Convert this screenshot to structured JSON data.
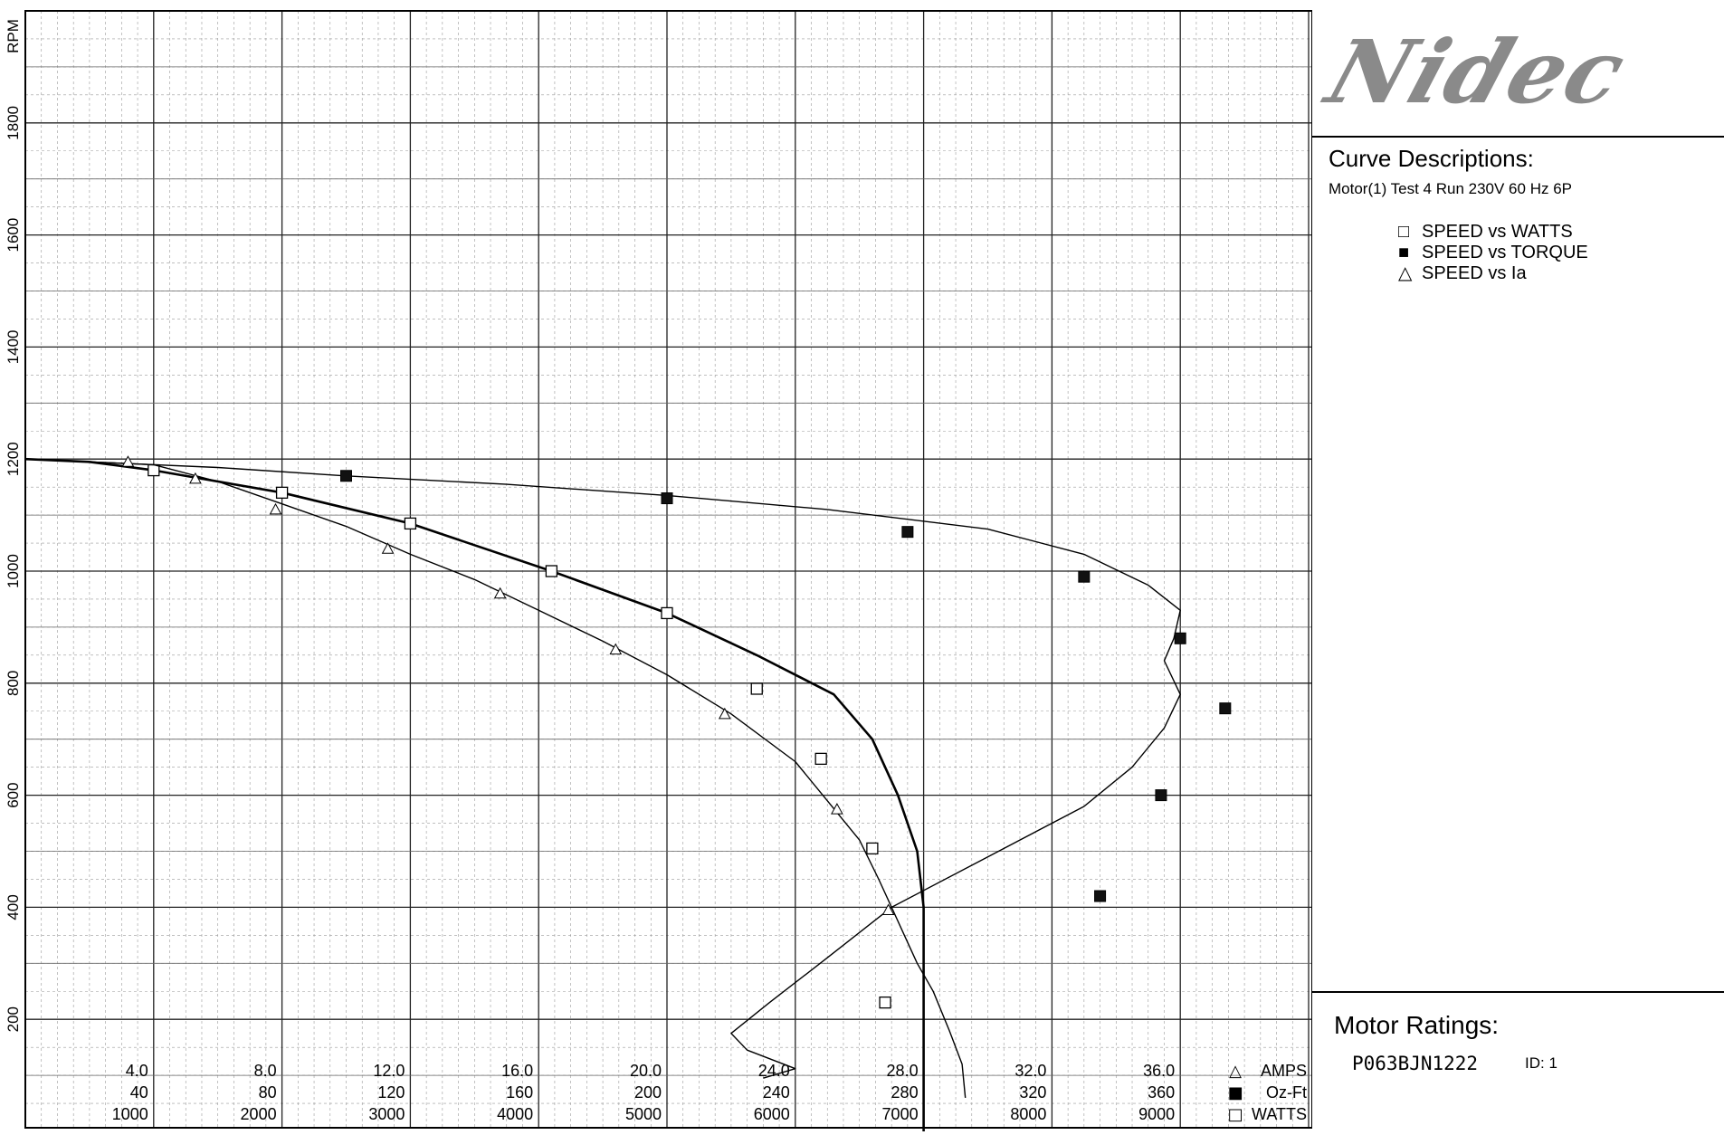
{
  "brand": {
    "logo_text": "Nidec"
  },
  "panel": {
    "curve_title": "Curve Descriptions:",
    "curve_subtitle": "Motor(1) Test 4 Run 230V 60 Hz 6P",
    "legend": [
      {
        "marker": "□",
        "label": "SPEED vs WATTS"
      },
      {
        "marker": "■",
        "label": "SPEED vs TORQUE"
      },
      {
        "marker": "△",
        "label": "SPEED vs Ia"
      }
    ],
    "ratings_title": "Motor Ratings:",
    "model": "P063BJN1222",
    "id_label": "ID: 1"
  },
  "chart_data": {
    "type": "line",
    "y_axis": {
      "label": "RPM",
      "range": [
        0,
        2000
      ],
      "ticks": [
        200,
        400,
        600,
        800,
        1000,
        1200,
        1400,
        1600,
        1800
      ]
    },
    "x_axes": [
      {
        "unit": "AMPS",
        "marker": "△",
        "range": [
          0,
          40
        ],
        "ticks": [
          "4.0",
          "8.0",
          "12.0",
          "16.0",
          "20.0",
          "24.0",
          "28.0",
          "32.0",
          "36.0"
        ]
      },
      {
        "unit": "Oz-Ft",
        "marker": "■",
        "range": [
          0,
          400
        ],
        "ticks": [
          "40",
          "80",
          "120",
          "160",
          "200",
          "240",
          "280",
          "320",
          "360"
        ]
      },
      {
        "unit": "WATTS",
        "marker": "□",
        "range": [
          0,
          10000
        ],
        "ticks": [
          "1000",
          "2000",
          "3000",
          "4000",
          "5000",
          "6000",
          "7000",
          "8000",
          "9000"
        ]
      }
    ],
    "grid": true,
    "series": [
      {
        "name": "SPEED vs WATTS",
        "marker": "square-open",
        "axis": 2,
        "points": [
          [
            0,
            1200
          ],
          [
            500,
            1195
          ],
          [
            1000,
            1180
          ],
          [
            2000,
            1140
          ],
          [
            3000,
            1085
          ],
          [
            4100,
            1000
          ],
          [
            5000,
            925
          ],
          [
            5700,
            850
          ],
          [
            6300,
            780
          ],
          [
            6600,
            700
          ],
          [
            6800,
            600
          ],
          [
            6950,
            500
          ],
          [
            7000,
            400
          ],
          [
            7000,
            300
          ],
          [
            7000,
            200
          ],
          [
            7000,
            0
          ]
        ],
        "marked": [
          [
            1000,
            1180
          ],
          [
            2000,
            1140
          ],
          [
            3000,
            1085
          ],
          [
            4100,
            1000
          ],
          [
            5000,
            925
          ],
          [
            5700,
            790
          ],
          [
            6200,
            665
          ],
          [
            6600,
            505
          ],
          [
            6700,
            230
          ]
        ]
      },
      {
        "name": "SPEED vs TORQUE",
        "marker": "square-filled",
        "axis": 1,
        "points": [
          [
            0,
            1200
          ],
          [
            60,
            1185
          ],
          [
            100,
            1170
          ],
          [
            150,
            1155
          ],
          [
            200,
            1135
          ],
          [
            250,
            1110
          ],
          [
            300,
            1075
          ],
          [
            330,
            1030
          ],
          [
            350,
            975
          ],
          [
            360,
            930
          ],
          [
            358,
            880
          ],
          [
            355,
            840
          ],
          [
            360,
            780
          ],
          [
            355,
            720
          ],
          [
            345,
            650
          ],
          [
            330,
            580
          ],
          [
            300,
            490
          ],
          [
            270,
            400
          ],
          [
            250,
            310
          ],
          [
            232,
            230
          ],
          [
            220,
            175
          ],
          [
            225,
            145
          ],
          [
            240,
            112
          ],
          [
            230,
            95
          ]
        ],
        "marked": [
          [
            100,
            1170
          ],
          [
            200,
            1130
          ],
          [
            275,
            1070
          ],
          [
            330,
            990
          ],
          [
            360,
            880
          ],
          [
            374,
            755
          ],
          [
            354,
            600
          ],
          [
            335,
            420
          ]
        ]
      },
      {
        "name": "SPEED vs Ia",
        "marker": "triangle-open",
        "axis": 0,
        "points": [
          [
            0,
            1200
          ],
          [
            4,
            1190
          ],
          [
            6,
            1160
          ],
          [
            8,
            1120
          ],
          [
            10,
            1080
          ],
          [
            12,
            1030
          ],
          [
            14,
            985
          ],
          [
            16,
            930
          ],
          [
            18,
            875
          ],
          [
            20,
            815
          ],
          [
            22,
            745
          ],
          [
            24,
            660
          ],
          [
            25,
            590
          ],
          [
            26,
            520
          ],
          [
            26.6,
            450
          ],
          [
            27,
            400
          ],
          [
            27.4,
            350
          ],
          [
            27.8,
            300
          ],
          [
            28.3,
            250
          ],
          [
            28.8,
            180
          ],
          [
            29.2,
            120
          ],
          [
            29.3,
            60
          ]
        ],
        "marked": [
          [
            3.2,
            1195
          ],
          [
            5.3,
            1165
          ],
          [
            7.8,
            1110
          ],
          [
            11.3,
            1040
          ],
          [
            14.8,
            960
          ],
          [
            18.4,
            860
          ],
          [
            21.8,
            745
          ],
          [
            25.3,
            575
          ],
          [
            26.9,
            395
          ]
        ]
      }
    ]
  }
}
